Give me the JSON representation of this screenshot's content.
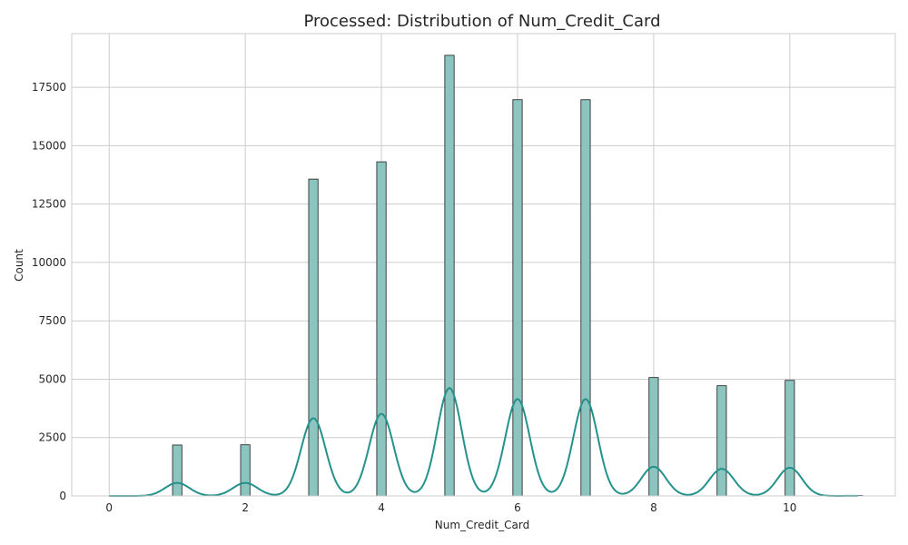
{
  "chart_data": {
    "type": "bar",
    "title": "Processed: Distribution of Num_Credit_Card",
    "xlabel": "Num_Credit_Card",
    "ylabel": "Count",
    "xlim": [
      -0.55,
      11.55
    ],
    "ylim": [
      0,
      19800
    ],
    "x_ticks": [
      0,
      2,
      4,
      6,
      8,
      10
    ],
    "y_ticks": [
      0,
      2500,
      5000,
      7500,
      10000,
      12500,
      15000,
      17500
    ],
    "grid": true,
    "bars": [
      {
        "x": 0,
        "value": 0
      },
      {
        "x": 1,
        "value": 2180
      },
      {
        "x": 2,
        "value": 2190
      },
      {
        "x": 3,
        "value": 13570
      },
      {
        "x": 4,
        "value": 14310
      },
      {
        "x": 5,
        "value": 18870
      },
      {
        "x": 6,
        "value": 16970
      },
      {
        "x": 7,
        "value": 16970
      },
      {
        "x": 8,
        "value": 5070
      },
      {
        "x": 9,
        "value": 4720
      },
      {
        "x": 10,
        "value": 4950
      },
      {
        "x": 11,
        "value": 20
      }
    ],
    "kde_peaks": [
      {
        "x": 1,
        "value": 560
      },
      {
        "x": 2,
        "value": 560
      },
      {
        "x": 3,
        "value": 3330
      },
      {
        "x": 4,
        "value": 3520
      },
      {
        "x": 5,
        "value": 4620
      },
      {
        "x": 6,
        "value": 4150
      },
      {
        "x": 7,
        "value": 4150
      },
      {
        "x": 8,
        "value": 1250
      },
      {
        "x": 9,
        "value": 1160
      },
      {
        "x": 10,
        "value": 1210
      },
      {
        "x": 11,
        "value": 5
      }
    ],
    "colors": {
      "bar_fill": "#8cc5c0",
      "bar_edge": "#1a1a1a",
      "kde_line": "#24928b",
      "grid": "#cccccc"
    }
  }
}
